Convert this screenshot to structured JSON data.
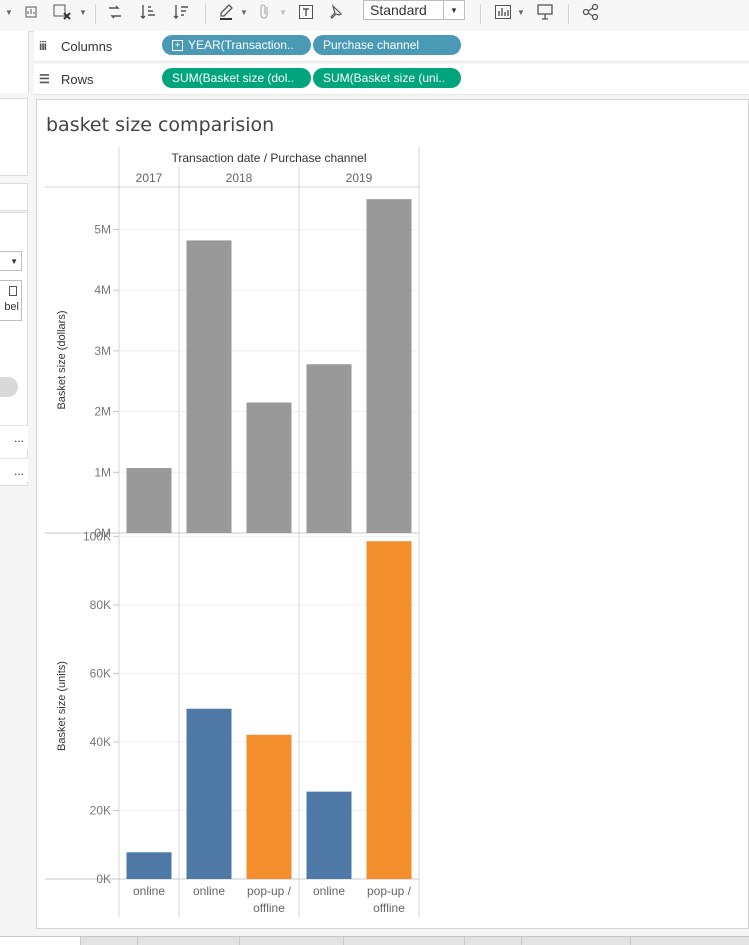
{
  "toolbar": {
    "icons": [
      "dropdown-caret-icon",
      "swap-icon",
      "clear-sheet-icon",
      "swap-rows-columns-icon",
      "sort-ascending-icon",
      "sort-descending-icon",
      "highlight-icon",
      "attach-icon",
      "text-label-icon",
      "pin-icon",
      "show-me-icon",
      "presentation-icon",
      "share-icon"
    ],
    "fit_select": "Standard"
  },
  "shelves": {
    "columns": {
      "label": "Columns",
      "pills": [
        "YEAR(Transaction..",
        "Purchase channel"
      ]
    },
    "rows": {
      "label": "Rows",
      "pills": [
        "SUM(Basket size (dol..",
        "SUM(Basket size (uni.."
      ]
    }
  },
  "left_panel": {
    "label_fragment": "bel",
    "ellipsis": [
      "...",
      "..."
    ]
  },
  "viz": {
    "title": "basket size comparision",
    "header_title": "Transaction date  /  Purchase channel"
  },
  "chart_data": {
    "type": "bar",
    "column_headers": [
      "2017",
      "2018",
      "2019"
    ],
    "categories": [
      {
        "year": "2017",
        "channel": "online"
      },
      {
        "year": "2018",
        "channel": "online"
      },
      {
        "year": "2018",
        "channel": "pop-up / offline"
      },
      {
        "year": "2019",
        "channel": "online"
      },
      {
        "year": "2019",
        "channel": "pop-up / offline"
      }
    ],
    "channel_labels": [
      "online",
      "online",
      "pop-up /\noffline",
      "online",
      "pop-up /\noffline"
    ],
    "panes": [
      {
        "ylabel": "Basket size (dollars)",
        "ylim": [
          0,
          5700000
        ],
        "ticks": [
          {
            "v": 0,
            "l": "0M"
          },
          {
            "v": 1000000,
            "l": "1M"
          },
          {
            "v": 2000000,
            "l": "2M"
          },
          {
            "v": 3000000,
            "l": "3M"
          },
          {
            "v": 4000000,
            "l": "4M"
          },
          {
            "v": 5000000,
            "l": "5M"
          }
        ],
        "values": [
          1070000,
          4820000,
          2150000,
          2780000,
          5500000
        ],
        "colors": [
          "#999999",
          "#999999",
          "#999999",
          "#999999",
          "#999999"
        ]
      },
      {
        "ylabel": "Basket size (units)",
        "ylim": [
          0,
          101000
        ],
        "ticks": [
          {
            "v": 0,
            "l": "0K"
          },
          {
            "v": 20000,
            "l": "20K"
          },
          {
            "v": 40000,
            "l": "40K"
          },
          {
            "v": 60000,
            "l": "60K"
          },
          {
            "v": 80000,
            "l": "80K"
          },
          {
            "v": 100000,
            "l": "100K"
          }
        ],
        "values": [
          7800,
          49700,
          42100,
          25500,
          98600
        ],
        "colors": [
          "#4e79a7",
          "#4e79a7",
          "#f28e2b",
          "#4e79a7",
          "#f28e2b"
        ]
      }
    ],
    "grid": true,
    "legend": "none"
  }
}
